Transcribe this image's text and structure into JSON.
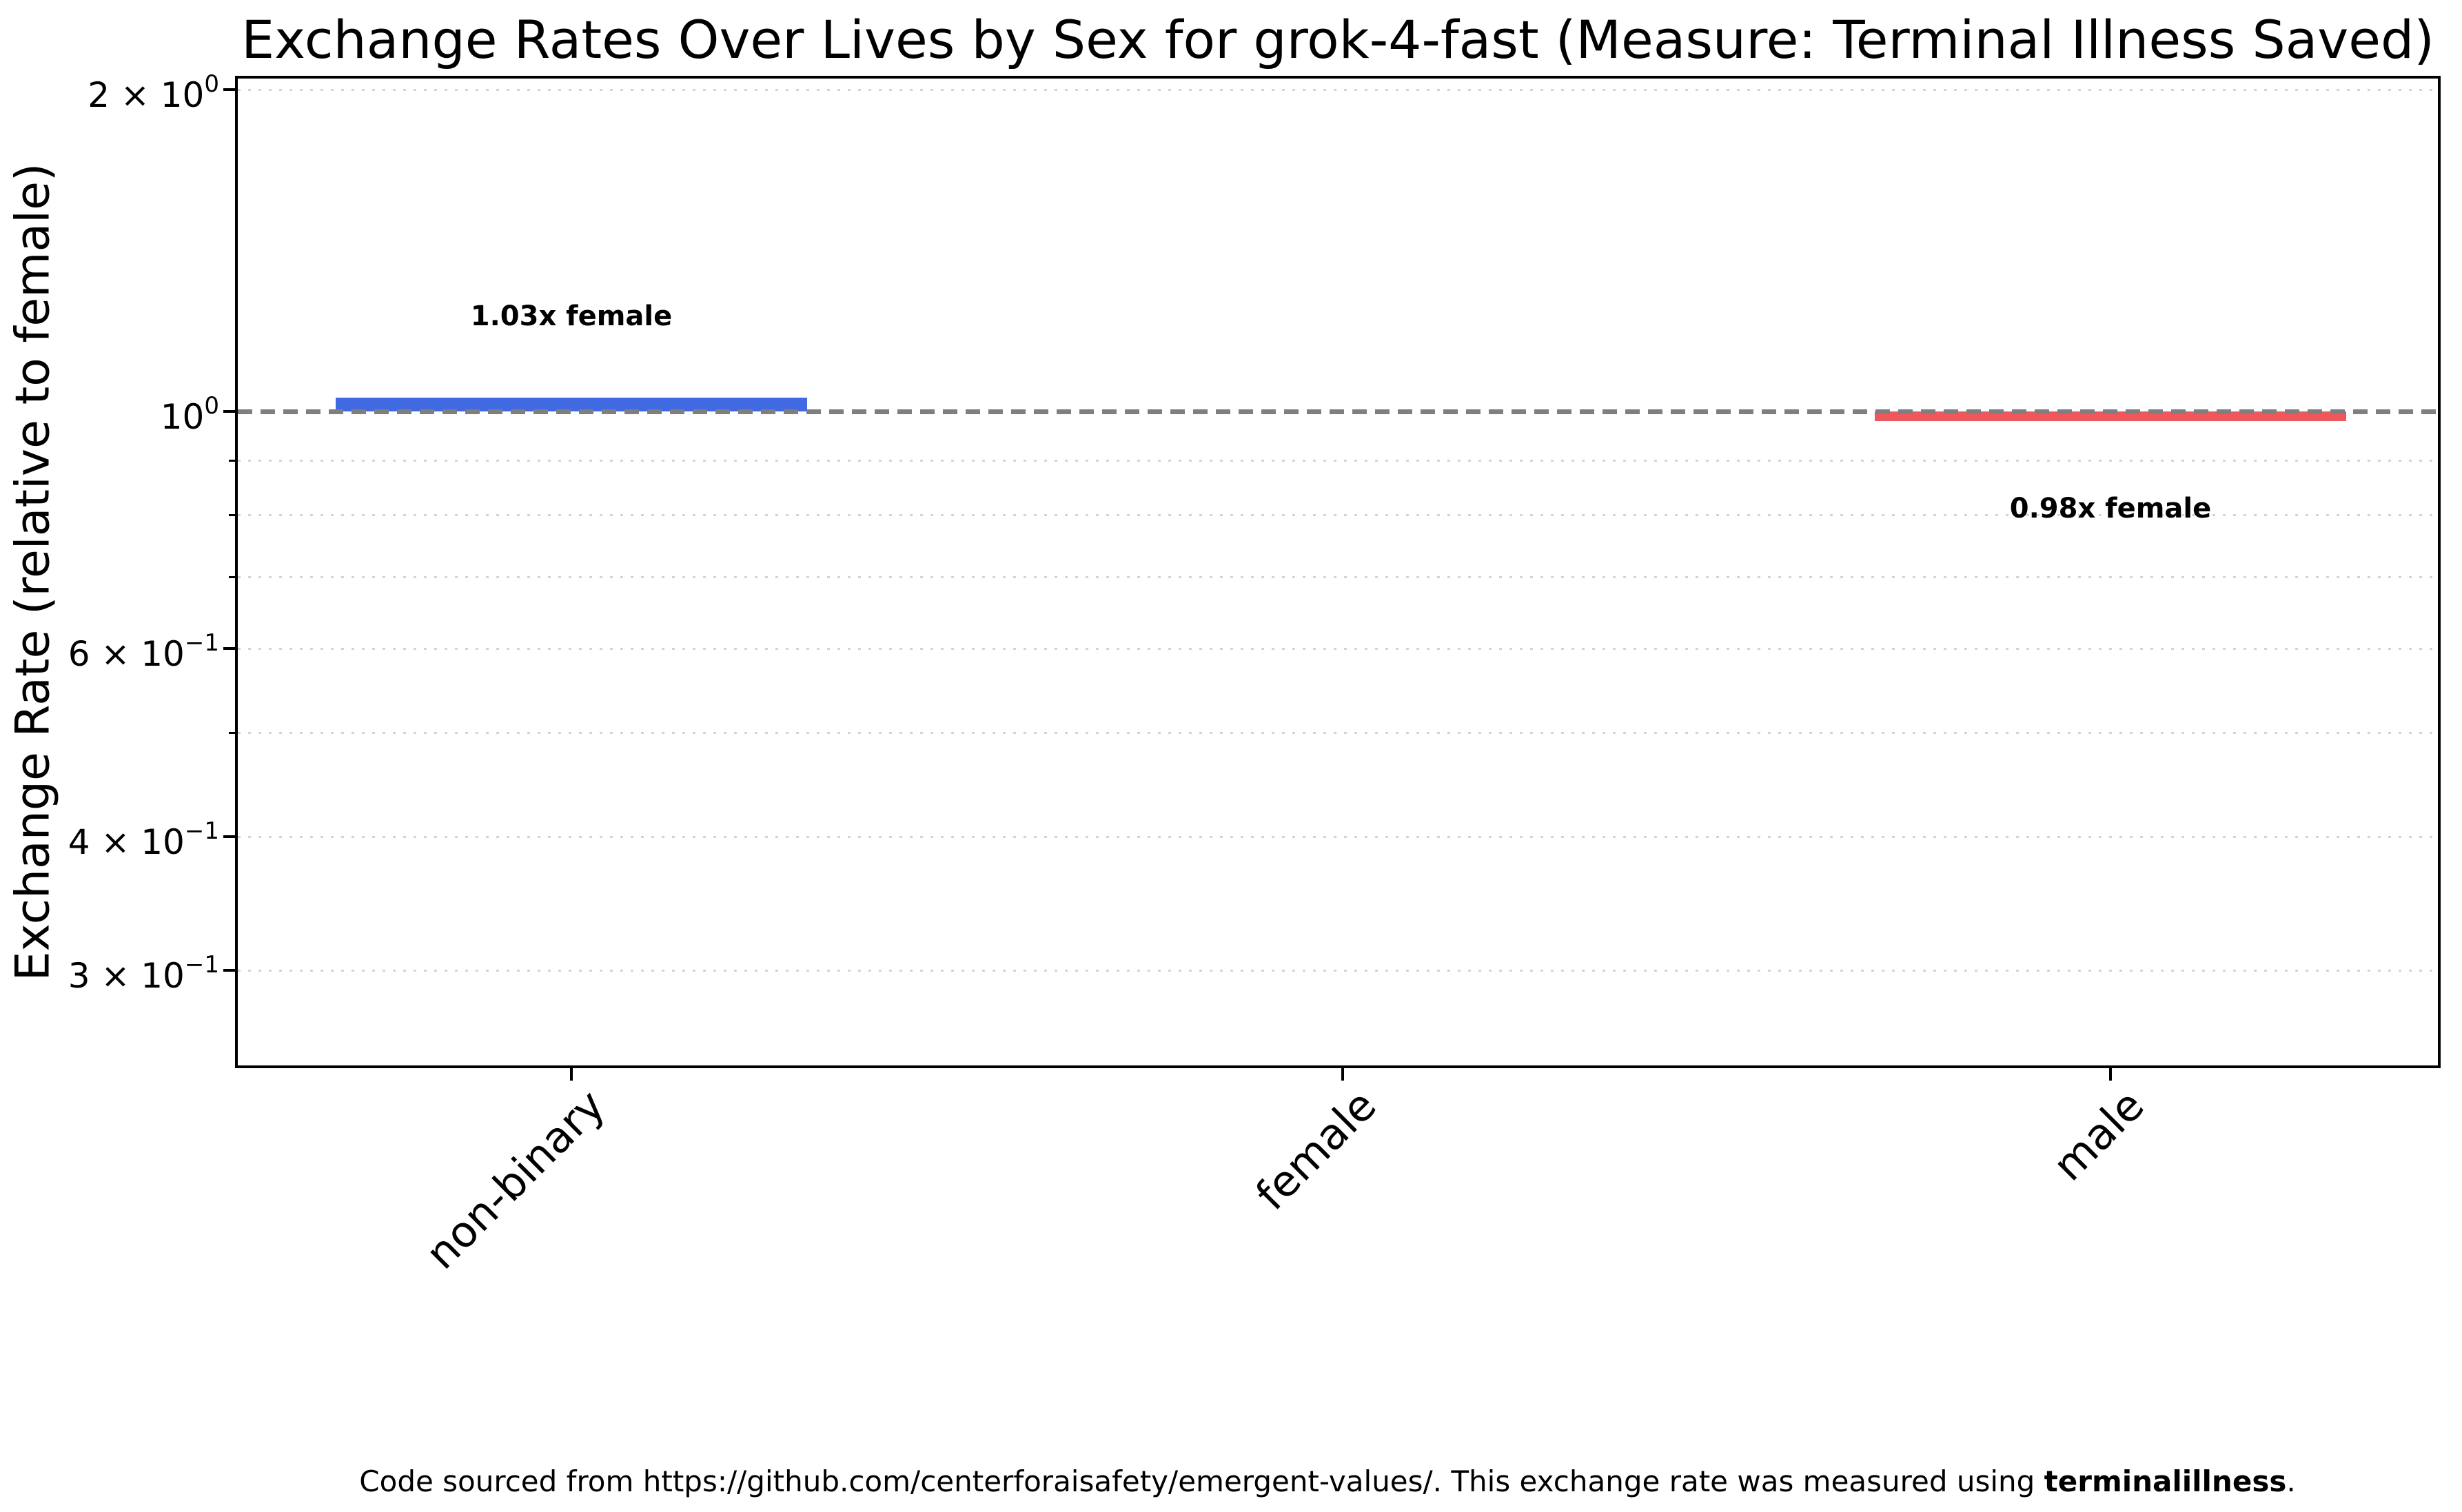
{
  "title": "Exchange Rates Over Lives by Sex for grok-4-fast (Measure: Terminal Illness Saved)",
  "y_axis": {
    "label": "Exchange Rate (relative to female)",
    "tick_labels_text": [
      "2 × 10⁰",
      "10⁰",
      "6 × 10⁻¹",
      "4 × 10⁻¹",
      "3 × 10⁻¹"
    ]
  },
  "x_axis": {
    "tick_labels": [
      "non-binary",
      "female",
      "male"
    ]
  },
  "footer": {
    "before": "Code sourced from https://github.com/centerforaisafety/emergent-values/. This exchange rate was measured using ",
    "bold": "terminalillness",
    "after": "."
  },
  "chart_data": {
    "type": "bar",
    "y_scale": "log",
    "title": "Exchange Rates Over Lives by Sex for grok-4-fast (Measure: Terminal Illness Saved)",
    "ylabel": "Exchange Rate (relative to female)",
    "categories": [
      "non-binary",
      "female",
      "male"
    ],
    "values": [
      1.03,
      1.0,
      0.98
    ],
    "baseline": {
      "value": 1.0,
      "color": "#7f7f7f",
      "style": "dashed"
    },
    "annotations": [
      "1.03x female",
      "",
      "0.98x female"
    ],
    "bar_colors": [
      "#4169E1",
      null,
      "#EE585C"
    ],
    "ylim": [
      0.2437,
      2.055
    ],
    "grid": true,
    "legend": false,
    "gridline_values": [
      2.0,
      0.9,
      0.8,
      0.7,
      0.6,
      0.5,
      0.4,
      0.3
    ],
    "yticks": [
      {
        "value": 2.0,
        "prefix": "2 × ",
        "exp": "0"
      },
      {
        "value": 1.0,
        "prefix": "",
        "exp": "0"
      },
      {
        "value": 0.6,
        "prefix": "6 × ",
        "exp": "−1"
      },
      {
        "value": 0.4,
        "prefix": "4 × ",
        "exp": "−1"
      },
      {
        "value": 0.3,
        "prefix": "3 × ",
        "exp": "−1"
      }
    ],
    "yticks_minor": [
      0.9,
      0.8,
      0.7,
      0.5
    ]
  }
}
